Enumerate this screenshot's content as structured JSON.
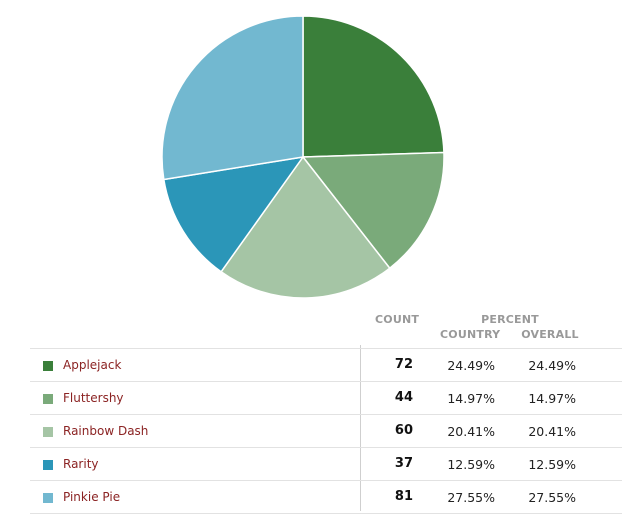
{
  "chart_data": {
    "type": "pie",
    "categories": [
      "Applejack",
      "Fluttershy",
      "Rainbow Dash",
      "Rarity",
      "Pinkie Pie"
    ],
    "values": [
      72,
      44,
      60,
      37,
      81
    ],
    "colors": [
      "#3a7f3a",
      "#7aaa7a",
      "#a5c5a5",
      "#2b96b8",
      "#72b8d0"
    ],
    "legend": "table-below"
  },
  "table": {
    "headers": {
      "count": "COUNT",
      "percent": "PERCENT",
      "country": "COUNTRY",
      "overall": "OVERALL"
    },
    "rows": [
      {
        "name": "Applejack",
        "color": "#3a7f3a",
        "count": "72",
        "country": "24.49%",
        "overall": "24.49%"
      },
      {
        "name": "Fluttershy",
        "color": "#7aaa7a",
        "count": "44",
        "country": "14.97%",
        "overall": "14.97%"
      },
      {
        "name": "Rainbow Dash",
        "color": "#a5c5a5",
        "count": "60",
        "country": "20.41%",
        "overall": "20.41%"
      },
      {
        "name": "Rarity",
        "color": "#2b96b8",
        "count": "37",
        "country": "12.59%",
        "overall": "12.59%"
      },
      {
        "name": "Pinkie Pie",
        "color": "#72b8d0",
        "count": "81",
        "country": "27.55%",
        "overall": "27.55%"
      }
    ]
  }
}
